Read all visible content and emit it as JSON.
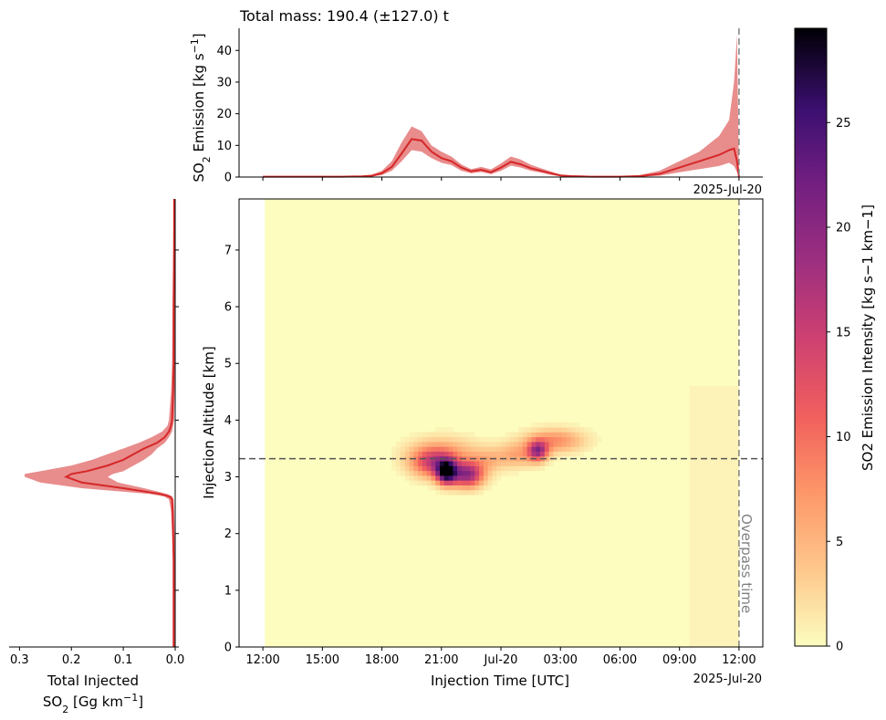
{
  "figure": {
    "title": "Total mass: 190.4 (±127.0) t",
    "overpass_label": "Overpass time",
    "line_color": "#d62728",
    "band_color": "#e06666",
    "ref_line_color": "#808080",
    "reference_altitude_km": 3.32
  },
  "chart_data": [
    {
      "id": "emission_timeseries",
      "type": "line",
      "ylabel": "SO2 Emission [kg s−1]",
      "ylim": [
        0,
        47
      ],
      "yticks": [
        0,
        10,
        20,
        30,
        40
      ],
      "x_tick_note": "2025-Jul-20",
      "x_hours": [
        0,
        1,
        2,
        3,
        4,
        5,
        5.5,
        6,
        6.5,
        7,
        7.5,
        8,
        8.5,
        9,
        9.5,
        10,
        10.5,
        11,
        11.5,
        12,
        12.5,
        13,
        13.5,
        14,
        14.5,
        15,
        15.5,
        16,
        16.5,
        17,
        18,
        19,
        20,
        21,
        22,
        22.5,
        23,
        23.5,
        23.75,
        23.9,
        24
      ],
      "series": [
        {
          "role": "mean",
          "values": [
            0.1,
            0.1,
            0.1,
            0.1,
            0.1,
            0.2,
            0.4,
            1.2,
            3.2,
            7.5,
            12.0,
            11.5,
            8.0,
            6.0,
            5.0,
            3.0,
            1.8,
            2.3,
            1.5,
            3.0,
            4.8,
            4.0,
            2.8,
            2.0,
            1.2,
            0.5,
            0.3,
            0.2,
            0.1,
            0.1,
            0.1,
            0.3,
            1.0,
            3.0,
            5.0,
            6.0,
            7.0,
            8.5,
            9.0,
            5.0,
            0.0
          ]
        },
        {
          "role": "upper",
          "values": [
            0.2,
            0.2,
            0.2,
            0.2,
            0.2,
            0.4,
            0.8,
            2.0,
            5.0,
            11.0,
            16.0,
            14.5,
            10.0,
            8.0,
            6.5,
            4.0,
            2.5,
            3.2,
            2.4,
            4.3,
            6.5,
            5.5,
            3.9,
            2.8,
            1.8,
            0.8,
            0.5,
            0.3,
            0.2,
            0.2,
            0.2,
            0.6,
            2.0,
            5.0,
            8.0,
            10.5,
            13.0,
            18.0,
            30.0,
            45.0,
            0.0
          ]
        },
        {
          "role": "lower",
          "values": [
            0.0,
            0.0,
            0.0,
            0.0,
            0.0,
            0.1,
            0.2,
            0.6,
            2.0,
            5.0,
            8.5,
            8.0,
            6.0,
            4.5,
            3.8,
            2.0,
            1.2,
            1.6,
            0.9,
            2.0,
            3.6,
            3.0,
            2.0,
            1.4,
            0.7,
            0.2,
            0.1,
            0.1,
            0.0,
            0.0,
            0.0,
            0.1,
            0.4,
            1.5,
            2.5,
            3.0,
            3.5,
            4.5,
            3.5,
            1.5,
            0.0
          ]
        }
      ]
    },
    {
      "id": "injection_heatmap",
      "type": "heatmap",
      "xlabel": "Injection Time [UTC]",
      "ylabel": "Injection Altitude [km]",
      "xticks": [
        "12:00",
        "15:00",
        "18:00",
        "21:00",
        "Jul-20",
        "03:00",
        "06:00",
        "09:00",
        "12:00"
      ],
      "x_tick_note": "2025-Jul-20",
      "yticks": [
        0,
        1,
        2,
        3,
        4,
        5,
        6,
        7
      ],
      "xlim_hours": [
        -1.2,
        25.2
      ],
      "ylim": [
        0,
        7.9
      ],
      "data_x_extent_hours": [
        0.1,
        24
      ],
      "colorbar": {
        "label": "SO2 Emission Intensity [kg s−1 km−1]",
        "range": [
          0,
          29.5
        ],
        "ticks": [
          0,
          5,
          10,
          15,
          20,
          25
        ],
        "colormap": "magma_r"
      },
      "blobs": [
        {
          "hour": 9.15,
          "alt": 3.05,
          "peak": 29,
          "width_h": 0.35,
          "height_km": 0.14
        },
        {
          "hour": 8.4,
          "alt": 3.2,
          "peak": 11,
          "width_h": 0.7,
          "height_km": 0.17
        },
        {
          "hour": 10.2,
          "alt": 3.0,
          "peak": 19,
          "width_h": 0.55,
          "height_km": 0.15
        },
        {
          "hour": 9.0,
          "alt": 3.35,
          "peak": 7,
          "width_h": 1.2,
          "height_km": 0.2
        },
        {
          "hour": 13.75,
          "alt": 3.42,
          "peak": 17,
          "width_h": 0.35,
          "height_km": 0.12
        },
        {
          "hour": 14.6,
          "alt": 3.6,
          "peak": 8,
          "width_h": 1.0,
          "height_km": 0.14
        },
        {
          "hour": 12.7,
          "alt": 3.35,
          "peak": 6,
          "width_h": 0.7,
          "height_km": 0.15
        },
        {
          "hour": 11.2,
          "alt": 3.25,
          "peak": 4,
          "width_h": 0.6,
          "height_km": 0.15
        }
      ]
    },
    {
      "id": "vertical_profile",
      "type": "line",
      "xlabel": "Total Injected SO2 [Gg km−1]",
      "xlim": [
        0.32,
        0
      ],
      "xticks": [
        0.3,
        0.2,
        0.1,
        0.0
      ],
      "ylim": [
        0,
        7.9
      ],
      "altitude_km": [
        0,
        0.5,
        1,
        1.5,
        2,
        2.4,
        2.6,
        2.65,
        2.7,
        2.8,
        2.9,
        3.0,
        3.05,
        3.1,
        3.2,
        3.3,
        3.4,
        3.5,
        3.6,
        3.7,
        3.8,
        3.9,
        4.0,
        4.5,
        5,
        6,
        7,
        7.9
      ],
      "series": [
        {
          "role": "mean",
          "values": [
            0.003,
            0.003,
            0.003,
            0.003,
            0.004,
            0.005,
            0.006,
            0.01,
            0.03,
            0.1,
            0.18,
            0.21,
            0.2,
            0.17,
            0.13,
            0.1,
            0.08,
            0.06,
            0.035,
            0.02,
            0.012,
            0.008,
            0.006,
            0.004,
            0.003,
            0.003,
            0.002,
            0.002
          ]
        },
        {
          "role": "upper",
          "values": [
            0.004,
            0.004,
            0.004,
            0.004,
            0.006,
            0.008,
            0.012,
            0.02,
            0.05,
            0.18,
            0.26,
            0.29,
            0.29,
            0.26,
            0.2,
            0.16,
            0.13,
            0.1,
            0.07,
            0.045,
            0.025,
            0.015,
            0.012,
            0.008,
            0.006,
            0.005,
            0.004,
            0.003
          ]
        },
        {
          "role": "lower",
          "values": [
            0.0,
            0.0,
            0.0,
            0.0,
            0.001,
            0.002,
            0.003,
            0.005,
            0.015,
            0.06,
            0.11,
            0.13,
            0.12,
            0.1,
            0.08,
            0.06,
            0.045,
            0.035,
            0.02,
            0.012,
            0.006,
            0.004,
            0.002,
            0.001,
            0.0,
            0.0,
            0.0,
            0.0
          ]
        }
      ]
    }
  ]
}
